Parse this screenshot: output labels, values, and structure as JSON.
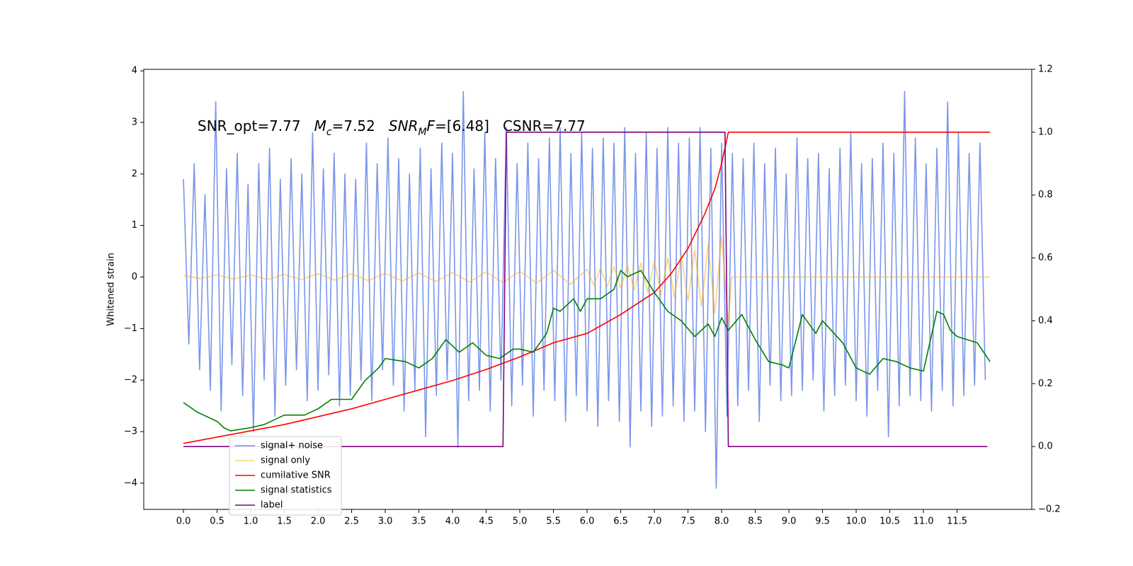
{
  "chart_data": {
    "type": "line",
    "annotation": [
      [
        {
          "text": "SNR_opt=7.77"
        }
      ],
      [
        {
          "text": "M",
          "italic": true
        },
        {
          "text": "c",
          "italic": true,
          "sub": true
        },
        {
          "text": "=7.52"
        }
      ],
      [
        {
          "text": "SNR",
          "italic": true
        },
        {
          "text": "M",
          "italic": true,
          "sub": true
        },
        {
          "text": "F",
          "italic": true
        },
        {
          "text": "=[6.48]"
        }
      ],
      [
        {
          "text": "CSNR=7.77"
        }
      ]
    ],
    "ylabel": "Whitened strain",
    "xlim": [
      -0.59,
      12.61
    ],
    "ylim": [
      -4.51,
      4.03
    ],
    "y2lim": [
      -0.2,
      1.2
    ],
    "xticks": [
      {
        "value": 0,
        "label": "0.0"
      },
      0.5,
      {
        "value": 1,
        "label": "1.0"
      },
      1.5,
      {
        "value": 2,
        "label": "2.0"
      },
      2.5,
      {
        "value": 3,
        "label": "3.0"
      },
      3.5,
      {
        "value": 4,
        "label": "4.0"
      },
      4.5,
      {
        "value": 5,
        "label": "5.0"
      },
      5.5,
      {
        "value": 6,
        "label": "6.0"
      },
      6.5,
      {
        "value": 7,
        "label": "7.0"
      },
      7.5,
      {
        "value": 8,
        "label": "8.0"
      },
      8.5,
      {
        "value": 9,
        "label": "9.0"
      },
      9.5,
      {
        "value": 10,
        "label": "10.0"
      },
      10.5,
      {
        "value": 11,
        "label": "11.0"
      },
      11.5
    ],
    "yticks": [
      {
        "value": -4,
        "label": "−4"
      },
      {
        "value": -3,
        "label": "−3"
      },
      {
        "value": -2,
        "label": "−2"
      },
      {
        "value": -1,
        "label": "−1"
      },
      0,
      1,
      2,
      3,
      4
    ],
    "y2ticks": [
      {
        "value": -0.2,
        "label": "−0.2"
      },
      {
        "value": 0,
        "label": "0.0"
      },
      0.2,
      0.4,
      0.6,
      0.8,
      {
        "value": 1,
        "label": "1.0"
      },
      1.2
    ],
    "grid": false,
    "legend": "lower left",
    "series": [
      {
        "name": "signal+ noise",
        "color": "#4169e1",
        "alpha": 0.7,
        "x": [
          0,
          0.08,
          0.16,
          0.24,
          0.32,
          0.4,
          0.48,
          0.56,
          0.64,
          0.72,
          0.8,
          0.88,
          0.96,
          1.04,
          1.12,
          1.2,
          1.28,
          1.36,
          1.44,
          1.52,
          1.6,
          1.68,
          1.76,
          1.84,
          1.92,
          2,
          2.08,
          2.16,
          2.24,
          2.32,
          2.4,
          2.48,
          2.56,
          2.64,
          2.72,
          2.8,
          2.88,
          2.96,
          3.04,
          3.12,
          3.2,
          3.28,
          3.36,
          3.44,
          3.52,
          3.6,
          3.68,
          3.76,
          3.84,
          3.92,
          4,
          4.08,
          4.16,
          4.24,
          4.32,
          4.4,
          4.48,
          4.56,
          4.64,
          4.72,
          4.8,
          4.88,
          4.96,
          5.04,
          5.12,
          5.2,
          5.28,
          5.36,
          5.44,
          5.52,
          5.6,
          5.68,
          5.76,
          5.84,
          5.92,
          6,
          6.08,
          6.16,
          6.24,
          6.32,
          6.4,
          6.48,
          6.56,
          6.64,
          6.72,
          6.8,
          6.88,
          6.96,
          7.04,
          7.12,
          7.2,
          7.28,
          7.36,
          7.44,
          7.52,
          7.6,
          7.68,
          7.76,
          7.84,
          7.92,
          8,
          8.08,
          8.16,
          8.24,
          8.32,
          8.4,
          8.48,
          8.56,
          8.64,
          8.72,
          8.8,
          8.88,
          8.96,
          9.04,
          9.12,
          9.2,
          9.28,
          9.36,
          9.44,
          9.52,
          9.6,
          9.68,
          9.76,
          9.84,
          9.92,
          10,
          10.08,
          10.16,
          10.24,
          10.32,
          10.4,
          10.48,
          10.56,
          10.64,
          10.72,
          10.8,
          10.88,
          10.96,
          11.04,
          11.12,
          11.2,
          11.28,
          11.36,
          11.44,
          11.52,
          11.6,
          11.68,
          11.76,
          11.84,
          11.92
        ],
        "values": [
          1.9,
          -1.3,
          2.2,
          -1.8,
          1.6,
          -2.2,
          3.4,
          -2.6,
          2.1,
          -1.7,
          2.4,
          -2.3,
          1.8,
          -3.0,
          2.2,
          -2.0,
          2.5,
          -2.7,
          1.9,
          -2.1,
          2.3,
          -1.8,
          2.0,
          -2.4,
          2.8,
          -2.2,
          2.1,
          -1.9,
          2.4,
          -2.5,
          2.0,
          -2.3,
          1.9,
          -2.0,
          2.6,
          -2.4,
          2.2,
          -1.8,
          2.7,
          -2.1,
          2.3,
          -2.6,
          2.0,
          -2.2,
          2.5,
          -3.1,
          2.1,
          -2.3,
          2.6,
          -2.0,
          2.4,
          -3.3,
          3.6,
          -2.4,
          2.1,
          -2.2,
          2.8,
          -2.6,
          2.3,
          -2.0,
          2.9,
          -2.5,
          2.2,
          -2.1,
          2.6,
          -2.7,
          2.3,
          -2.2,
          2.7,
          -2.4,
          2.9,
          -2.8,
          2.4,
          -2.3,
          2.8,
          -2.6,
          2.5,
          -2.9,
          2.7,
          -2.4,
          2.6,
          -2.8,
          2.9,
          -3.3,
          2.4,
          -2.6,
          2.8,
          -2.9,
          2.5,
          -2.7,
          2.9,
          -2.5,
          2.6,
          -2.8,
          2.7,
          -2.6,
          2.9,
          -3.0,
          2.5,
          -4.1,
          2.6,
          -2.7,
          2.4,
          -2.5,
          2.3,
          -2.2,
          2.6,
          -2.8,
          2.2,
          -2.1,
          2.5,
          -2.4,
          2.0,
          -2.3,
          2.7,
          -2.2,
          2.3,
          -2.0,
          2.4,
          -2.6,
          2.1,
          -2.3,
          2.5,
          -2.1,
          2.8,
          -2.4,
          2.2,
          -2.7,
          2.3,
          -2.2,
          2.6,
          -3.1,
          2.4,
          -2.5,
          3.6,
          -2.3,
          2.7,
          -2.4,
          2.2,
          -2.6,
          2.5,
          -2.2,
          3.4,
          -2.5,
          2.8,
          -2.3,
          2.4,
          -2.1,
          2.6,
          -2.0
        ]
      },
      {
        "name": "signal only",
        "color": "#ffa500",
        "alpha": 0.5,
        "x": [
          0,
          0.25,
          0.5,
          0.75,
          1,
          1.25,
          1.5,
          1.75,
          2,
          2.25,
          2.5,
          2.75,
          3,
          3.25,
          3.5,
          3.75,
          4,
          4.25,
          4.5,
          4.75,
          5,
          5.25,
          5.5,
          5.75,
          6,
          6.1,
          6.2,
          6.3,
          6.4,
          6.5,
          6.6,
          6.7,
          6.8,
          6.9,
          7,
          7.1,
          7.2,
          7.3,
          7.4,
          7.5,
          7.6,
          7.7,
          7.8,
          7.9,
          8,
          8.1,
          8.15,
          11.99
        ],
        "values": [
          0.03,
          -0.03,
          0.04,
          -0.04,
          0.04,
          -0.05,
          0.05,
          -0.05,
          0.06,
          -0.06,
          0.06,
          -0.07,
          0.07,
          -0.08,
          0.08,
          -0.09,
          0.09,
          -0.1,
          0.1,
          -0.11,
          0.11,
          -0.12,
          0.13,
          -0.14,
          0.15,
          -0.16,
          0.17,
          -0.18,
          0.2,
          -0.21,
          0.23,
          -0.25,
          0.27,
          -0.29,
          0.31,
          -0.34,
          0.37,
          -0.4,
          0.43,
          -0.47,
          0.52,
          -0.57,
          0.63,
          -0.7,
          0.8,
          -0.9,
          0,
          0
        ]
      },
      {
        "name": "cumilative SNR",
        "color": "#ff0000",
        "axis": "y2",
        "x": [
          0,
          0.5,
          1,
          1.5,
          2,
          2.5,
          3,
          3.5,
          4,
          4.5,
          5,
          5.5,
          6,
          6.5,
          7,
          7.25,
          7.5,
          7.75,
          7.9,
          8,
          8.05,
          8.1,
          11.99
        ],
        "values": [
          0.01,
          0.03,
          0.05,
          0.07,
          0.095,
          0.12,
          0.15,
          0.18,
          0.21,
          0.245,
          0.285,
          0.33,
          0.36,
          0.42,
          0.49,
          0.55,
          0.63,
          0.74,
          0.82,
          0.9,
          0.95,
          1.0,
          1.0
        ]
      },
      {
        "name": "signal statistics",
        "color": "#008000",
        "axis": "y2",
        "x": [
          0,
          0.2,
          0.3,
          0.5,
          0.6,
          0.7,
          1,
          1.2,
          1.5,
          1.8,
          2,
          2.2,
          2.5,
          2.7,
          2.9,
          3,
          3.3,
          3.5,
          3.7,
          3.9,
          4.1,
          4.3,
          4.5,
          4.7,
          4.9,
          5,
          5.2,
          5.4,
          5.5,
          5.6,
          5.8,
          5.9,
          6,
          6.2,
          6.4,
          6.5,
          6.6,
          6.8,
          7,
          7.2,
          7.4,
          7.6,
          7.8,
          7.9,
          8,
          8.1,
          8.3,
          8.5,
          8.7,
          8.9,
          9,
          9.2,
          9.4,
          9.5,
          9.8,
          10,
          10.2,
          10.4,
          10.6,
          10.8,
          11,
          11.2,
          11.3,
          11.4,
          11.5,
          11.8,
          11.99
        ],
        "values": [
          0.14,
          0.11,
          0.1,
          0.08,
          0.06,
          0.05,
          0.06,
          0.07,
          0.1,
          0.1,
          0.12,
          0.15,
          0.15,
          0.21,
          0.25,
          0.28,
          0.27,
          0.25,
          0.28,
          0.34,
          0.3,
          0.33,
          0.29,
          0.28,
          0.31,
          0.31,
          0.3,
          0.36,
          0.44,
          0.43,
          0.47,
          0.43,
          0.47,
          0.47,
          0.5,
          0.56,
          0.54,
          0.56,
          0.49,
          0.43,
          0.4,
          0.35,
          0.39,
          0.35,
          0.41,
          0.37,
          0.42,
          0.34,
          0.27,
          0.26,
          0.25,
          0.42,
          0.36,
          0.4,
          0.33,
          0.25,
          0.23,
          0.28,
          0.27,
          0.25,
          0.24,
          0.43,
          0.42,
          0.37,
          0.35,
          0.33,
          0.27
        ]
      },
      {
        "name": "label",
        "color": "#800080",
        "axis": "y2",
        "x": [
          0,
          4.75,
          4.8,
          8.05,
          8.1,
          11.95
        ],
        "values": [
          0,
          0,
          1,
          1,
          0,
          0
        ]
      }
    ]
  }
}
